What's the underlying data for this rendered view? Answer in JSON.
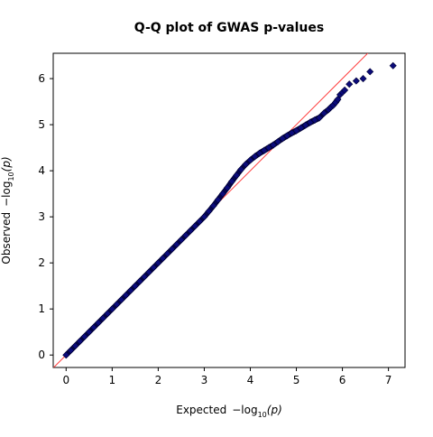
{
  "chart_data": {
    "type": "scatter",
    "title": "Q-Q plot of GWAS p-values",
    "xlabel": {
      "prefix": "Expected",
      "minus": "−log",
      "sub": "10",
      "arg": "(p)"
    },
    "ylabel": {
      "prefix": "Observed",
      "minus": "−log",
      "sub": "10",
      "arg": "(p)"
    },
    "xlim": [
      -0.28,
      7.36
    ],
    "ylim": [
      -0.27,
      6.55
    ],
    "xticks": [
      0,
      1,
      2,
      3,
      4,
      5,
      6,
      7
    ],
    "yticks": [
      0,
      1,
      2,
      3,
      4,
      5,
      6
    ],
    "grid": false,
    "reference_line": {
      "slope": 1,
      "intercept": 0,
      "color": "#ff4040",
      "label": ""
    },
    "series": [
      {
        "marker": "diamond",
        "color": "#0b0b7a",
        "edge_color": "#000033",
        "points": [
          [
            0.0,
            0.0
          ],
          [
            0.1,
            0.1
          ],
          [
            0.2,
            0.2
          ],
          [
            0.3,
            0.3
          ],
          [
            0.4,
            0.4
          ],
          [
            0.5,
            0.5
          ],
          [
            0.6,
            0.6
          ],
          [
            0.7,
            0.7
          ],
          [
            0.8,
            0.8
          ],
          [
            0.9,
            0.9
          ],
          [
            1.0,
            1.0
          ],
          [
            1.1,
            1.1
          ],
          [
            1.2,
            1.2
          ],
          [
            1.3,
            1.3
          ],
          [
            1.4,
            1.4
          ],
          [
            1.5,
            1.5
          ],
          [
            1.6,
            1.6
          ],
          [
            1.7,
            1.7
          ],
          [
            1.8,
            1.8
          ],
          [
            1.9,
            1.9
          ],
          [
            2.0,
            2.0
          ],
          [
            2.1,
            2.1
          ],
          [
            2.2,
            2.2
          ],
          [
            2.3,
            2.3
          ],
          [
            2.4,
            2.4
          ],
          [
            2.5,
            2.5
          ],
          [
            2.6,
            2.6
          ],
          [
            2.7,
            2.7
          ],
          [
            2.8,
            2.8
          ],
          [
            2.9,
            2.9
          ],
          [
            3.0,
            3.0
          ],
          [
            3.1,
            3.12
          ],
          [
            3.2,
            3.24
          ],
          [
            3.3,
            3.37
          ],
          [
            3.4,
            3.5
          ],
          [
            3.5,
            3.63
          ],
          [
            3.6,
            3.77
          ],
          [
            3.7,
            3.9
          ],
          [
            3.8,
            4.03
          ],
          [
            3.9,
            4.14
          ],
          [
            4.0,
            4.23
          ],
          [
            4.1,
            4.31
          ],
          [
            4.2,
            4.38
          ],
          [
            4.3,
            4.44
          ],
          [
            4.4,
            4.5
          ],
          [
            4.5,
            4.56
          ],
          [
            4.6,
            4.63
          ],
          [
            4.7,
            4.7
          ],
          [
            4.8,
            4.76
          ],
          [
            4.9,
            4.82
          ],
          [
            5.0,
            4.87
          ],
          [
            5.1,
            4.93
          ],
          [
            5.2,
            4.99
          ],
          [
            5.3,
            5.05
          ],
          [
            5.4,
            5.1
          ],
          [
            5.5,
            5.15
          ],
          [
            5.6,
            5.25
          ],
          [
            5.7,
            5.33
          ],
          [
            5.75,
            5.38
          ],
          [
            5.8,
            5.42
          ],
          [
            5.85,
            5.48
          ],
          [
            5.9,
            5.55
          ],
          [
            5.95,
            5.65
          ],
          [
            6.0,
            5.7
          ],
          [
            6.05,
            5.75
          ],
          [
            6.15,
            5.88
          ],
          [
            6.3,
            5.95
          ],
          [
            6.45,
            6.0
          ],
          [
            6.6,
            6.15
          ],
          [
            7.1,
            6.28
          ]
        ]
      }
    ]
  }
}
